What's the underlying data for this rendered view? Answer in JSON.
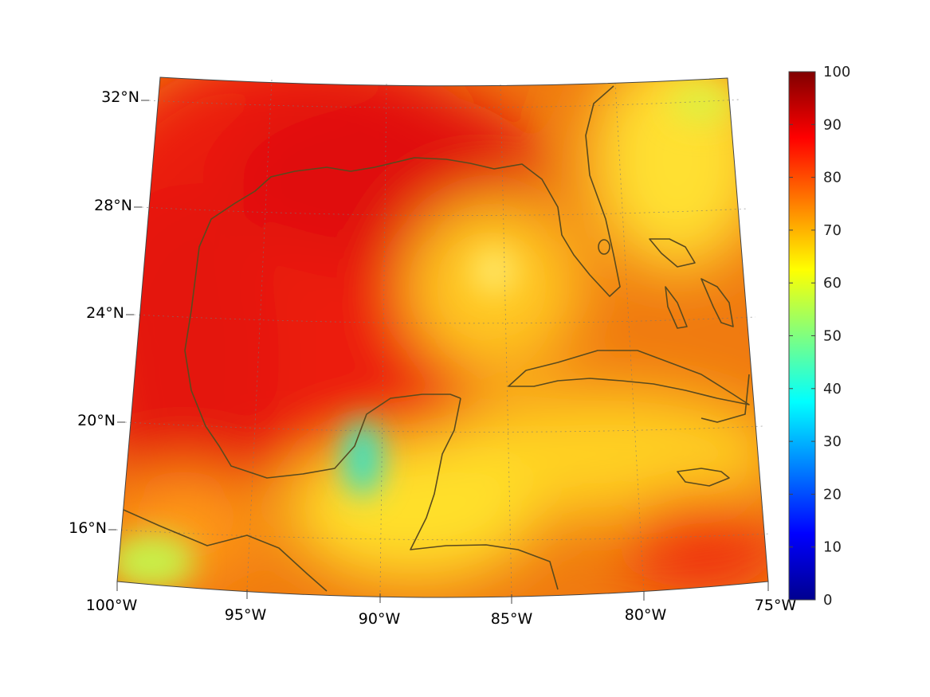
{
  "chart_data": {
    "type": "heatmap",
    "title": "",
    "xlabel": "",
    "ylabel": "",
    "projection": "conic",
    "lon_range": [
      -100,
      -75
    ],
    "lat_range": [
      14,
      33
    ],
    "lon_ticks": [
      "100°W",
      "95°W",
      "90°W",
      "85°W",
      "80°W",
      "75°W"
    ],
    "lat_ticks": [
      "16°N",
      "20°N",
      "24°N",
      "28°N",
      "32°N"
    ],
    "grid": true,
    "colorbar": {
      "colormap": "jet",
      "min": 0,
      "max": 100,
      "ticks": [
        "0",
        "10",
        "20",
        "30",
        "40",
        "50",
        "60",
        "70",
        "80",
        "90",
        "100"
      ],
      "placement": "right"
    },
    "coastline_color": "#5a4a1e"
  }
}
